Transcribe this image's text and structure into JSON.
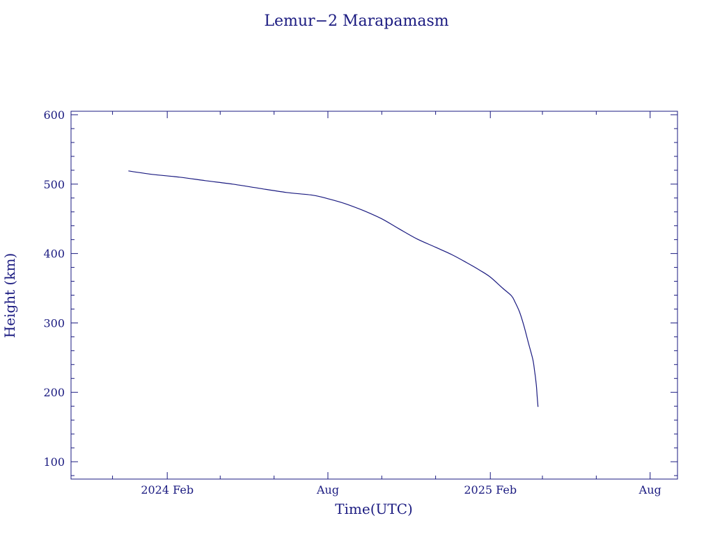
{
  "chart_data": {
    "type": "line",
    "title": "Lemur−2 Marapamasm",
    "xlabel": "Time(UTC)",
    "ylabel": "Height (km)",
    "xlim": [
      "2023-10-15",
      "2025-09-01"
    ],
    "ylim": [
      75,
      605
    ],
    "x_ticks": [
      {
        "date": "2024-02-01",
        "label": "2024 Feb"
      },
      {
        "date": "2024-08-01",
        "label": "Aug"
      },
      {
        "date": "2025-02-01",
        "label": "2025 Feb"
      },
      {
        "date": "2025-08-01",
        "label": "Aug"
      }
    ],
    "y_ticks": [
      100,
      200,
      300,
      400,
      500,
      600
    ],
    "grid": false,
    "color": "#1a1a80",
    "series": [
      {
        "x": [
          "2023-12-19",
          "2024-01-15",
          "2024-02-15",
          "2024-03-15",
          "2024-04-15",
          "2024-05-15",
          "2024-06-15",
          "2024-07-15",
          "2024-08-01",
          "2024-08-20",
          "2024-09-10",
          "2024-10-01",
          "2024-10-20",
          "2024-11-10",
          "2024-12-01",
          "2024-12-20",
          "2025-01-05",
          "2025-01-20",
          "2025-02-01",
          "2025-02-15",
          "2025-02-25",
          "2025-03-01",
          "2025-03-06",
          "2025-03-11",
          "2025-03-16",
          "2025-03-21",
          "2025-03-23",
          "2025-03-25",
          "2025-03-26",
          "2025-03-27"
        ],
        "y": [
          519,
          514,
          510,
          505,
          500,
          494,
          488,
          484,
          479,
          472,
          462,
          450,
          436,
          421,
          409,
          398,
          387,
          376,
          366,
          350,
          339,
          330,
          316,
          296,
          272,
          248,
          232,
          212,
          195,
          179
        ]
      }
    ]
  }
}
